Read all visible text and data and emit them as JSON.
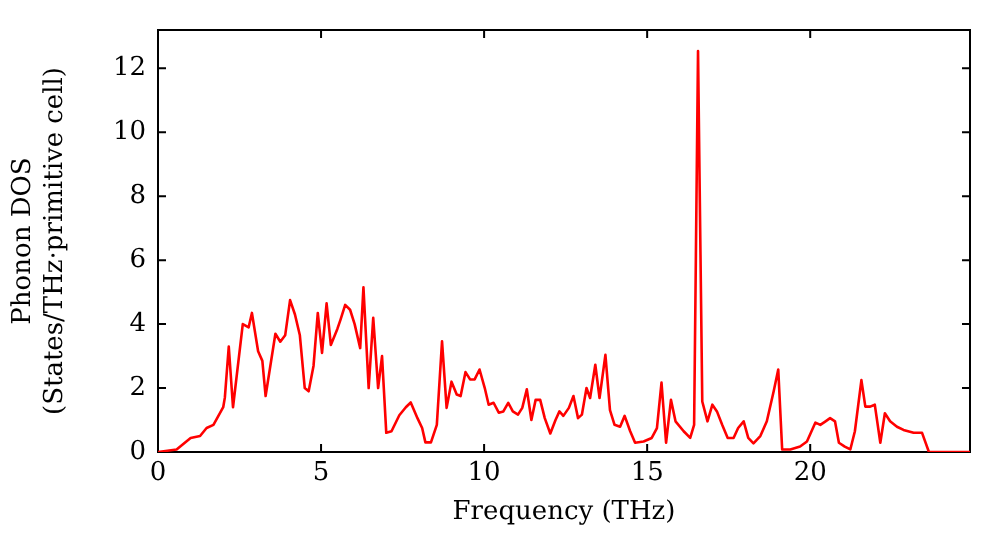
{
  "chart_data": {
    "type": "line",
    "xlabel": "Frequency (THz)",
    "ylabel": "Phonon DOS\n(States/THz·primitive cell)",
    "xlim": [
      0,
      24.9
    ],
    "ylim": [
      0,
      13.2
    ],
    "xticks": [
      0,
      5,
      10,
      15,
      20
    ],
    "yticks": [
      0,
      2,
      4,
      6,
      8,
      10,
      12
    ],
    "grid": false,
    "legend": false,
    "marker": "none",
    "line_style": "solid",
    "series": [
      {
        "color": "#ff0000",
        "x": [
          0,
          0.57,
          1.0,
          1.29,
          1.49,
          1.7,
          2.0,
          2.05,
          2.17,
          2.3,
          2.6,
          2.78,
          2.88,
          3.07,
          3.2,
          3.3,
          3.6,
          3.75,
          3.9,
          4.05,
          4.2,
          4.35,
          4.5,
          4.62,
          4.77,
          4.9,
          5.03,
          5.17,
          5.3,
          5.5,
          5.6,
          5.74,
          5.89,
          6.03,
          6.2,
          6.3,
          6.46,
          6.6,
          6.75,
          6.87,
          7.0,
          7.16,
          7.4,
          7.6,
          7.75,
          7.96,
          8.1,
          8.2,
          8.37,
          8.55,
          8.71,
          8.85,
          9.0,
          9.16,
          9.28,
          9.43,
          9.57,
          9.71,
          9.86,
          10.02,
          10.14,
          10.29,
          10.45,
          10.59,
          10.74,
          10.88,
          11.04,
          11.17,
          11.31,
          11.45,
          11.58,
          11.72,
          11.86,
          12.03,
          12.19,
          12.31,
          12.43,
          12.6,
          12.74,
          12.88,
          13.0,
          13.14,
          13.25,
          13.41,
          13.54,
          13.72,
          13.86,
          14.0,
          14.17,
          14.31,
          14.48,
          14.63,
          14.89,
          15.14,
          15.3,
          15.44,
          15.58,
          15.73,
          15.87,
          16.12,
          16.32,
          16.44,
          16.56,
          16.69,
          16.85,
          17.0,
          17.14,
          17.3,
          17.47,
          17.65,
          17.79,
          17.96,
          18.1,
          18.26,
          18.47,
          18.67,
          18.88,
          19.02,
          19.14,
          19.39,
          19.69,
          19.9,
          20.04,
          20.16,
          20.31,
          20.47,
          20.61,
          20.76,
          20.88,
          21.06,
          21.23,
          21.37,
          21.57,
          21.69,
          21.84,
          21.98,
          22.15,
          22.29,
          22.45,
          22.66,
          22.86,
          23.17,
          23.43,
          23.64,
          24.9
        ],
        "values": [
          0,
          0.08,
          0.44,
          0.5,
          0.75,
          0.85,
          1.4,
          1.7,
          3.3,
          1.4,
          4.0,
          3.9,
          4.35,
          3.15,
          2.85,
          1.75,
          3.7,
          3.45,
          3.65,
          4.75,
          4.3,
          3.65,
          2.0,
          1.9,
          2.7,
          4.35,
          3.1,
          4.65,
          3.35,
          3.85,
          4.15,
          4.6,
          4.45,
          4.0,
          3.25,
          5.15,
          2.0,
          4.2,
          2.0,
          3.0,
          0.6,
          0.65,
          1.15,
          1.4,
          1.55,
          1.05,
          0.75,
          0.3,
          0.3,
          0.85,
          3.46,
          1.38,
          2.2,
          1.8,
          1.75,
          2.5,
          2.27,
          2.27,
          2.58,
          2.0,
          1.48,
          1.54,
          1.23,
          1.27,
          1.54,
          1.27,
          1.17,
          1.38,
          1.96,
          1.0,
          1.63,
          1.63,
          1.06,
          0.58,
          1.0,
          1.27,
          1.13,
          1.38,
          1.75,
          1.06,
          1.17,
          2.0,
          1.69,
          2.73,
          1.69,
          3.04,
          1.31,
          0.85,
          0.79,
          1.13,
          0.65,
          0.29,
          0.33,
          0.44,
          0.75,
          2.17,
          0.29,
          1.63,
          0.96,
          0.65,
          0.44,
          0.85,
          12.54,
          1.58,
          0.96,
          1.48,
          1.27,
          0.85,
          0.44,
          0.44,
          0.75,
          0.96,
          0.44,
          0.27,
          0.5,
          0.96,
          1.9,
          2.58,
          0.08,
          0.08,
          0.17,
          0.33,
          0.65,
          0.92,
          0.85,
          0.96,
          1.06,
          0.96,
          0.29,
          0.17,
          0.08,
          0.65,
          2.25,
          1.42,
          1.42,
          1.48,
          0.29,
          1.21,
          0.96,
          0.79,
          0.69,
          0.6,
          0.6,
          0,
          0
        ]
      }
    ]
  }
}
